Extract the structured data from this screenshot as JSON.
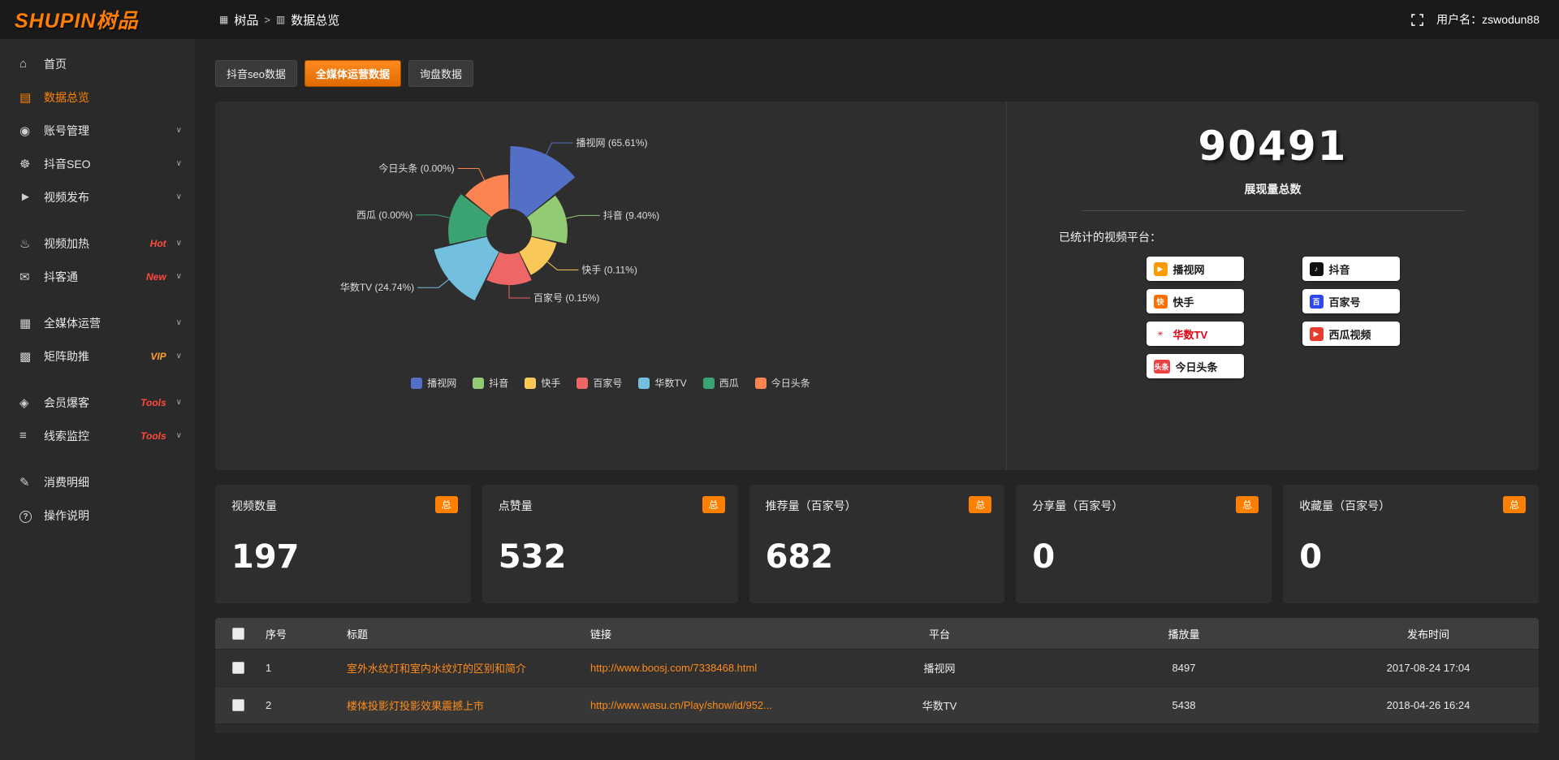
{
  "colors": {
    "accent": "#ff8000",
    "link": "#ff8c1a",
    "panel": "#2e2e2e"
  },
  "header": {
    "logo_text": "SHUPIN树品",
    "breadcrumb": {
      "root": "树品",
      "separator": ">",
      "current": "数据总览"
    },
    "username": "用户名：zswodun88"
  },
  "sidebar": {
    "items": [
      {
        "label": "首页",
        "icon": "home"
      },
      {
        "label": "数据总览",
        "icon": "bar-chart",
        "active": true
      },
      {
        "label": "账号管理",
        "icon": "user",
        "expandable": true
      },
      {
        "label": "抖音SEO",
        "icon": "gear",
        "expandable": true
      },
      {
        "label": "视频发布",
        "icon": "video-upload",
        "expandable": true
      },
      {
        "label": "视频加热",
        "icon": "fire",
        "tag": "Hot",
        "tag_color": "#ff4a3d",
        "expandable": true
      },
      {
        "label": "抖客通",
        "icon": "message",
        "tag": "New",
        "tag_color": "#ff4a3d",
        "expandable": true
      },
      {
        "label": "全媒体运营",
        "icon": "monitor",
        "expandable": true
      },
      {
        "label": "矩阵助推",
        "icon": "grid",
        "tag": "VIP",
        "tag_color": "#ffa02e",
        "expandable": true
      },
      {
        "label": "会员爆客",
        "icon": "member",
        "tag": "Tools",
        "tag_color": "#ff4a3d",
        "expandable": true
      },
      {
        "label": "线索监控",
        "icon": "filter",
        "tag": "Tools",
        "tag_color": "#ff4a3d",
        "expandable": true
      },
      {
        "label": "消费明细",
        "icon": "receipt"
      },
      {
        "label": "操作说明",
        "icon": "help"
      }
    ]
  },
  "tabs": [
    {
      "label": "抖音seo数据"
    },
    {
      "label": "全媒体运营数据",
      "active": true
    },
    {
      "label": "询盘数据"
    }
  ],
  "chart_data": {
    "type": "pie",
    "variant": "nightingale-rose-donut",
    "title": "",
    "legend_position": "bottom",
    "inner_radius": 28,
    "slices": [
      {
        "name": "播视网",
        "percent": 65.61,
        "color": "#5470c6",
        "radius": 105
      },
      {
        "name": "抖音",
        "percent": 9.4,
        "color": "#91cc75",
        "radius": 72
      },
      {
        "name": "快手",
        "percent": 0.11,
        "color": "#fac858",
        "radius": 60
      },
      {
        "name": "百家号",
        "percent": 0.15,
        "color": "#ee6666",
        "radius": 66
      },
      {
        "name": "华数TV",
        "percent": 24.74,
        "color": "#73c0de",
        "radius": 95
      },
      {
        "name": "西瓜",
        "percent": 0,
        "color": "#3ba272",
        "radius": 75
      },
      {
        "name": "今日头条",
        "percent": 0,
        "color": "#fc8452",
        "radius": 70
      }
    ]
  },
  "summary": {
    "total_value": "90491",
    "total_label": "展现量总数",
    "platforms_label": "已统计的视频平台：",
    "platforms": [
      {
        "name": "播视网",
        "icon_label": "▶",
        "icon_bg": "#ff9a00",
        "icon_fg": "#ffffff",
        "text_color": "#1a1a1a"
      },
      {
        "name": "抖音",
        "icon_label": "♪",
        "icon_bg": "#111111",
        "icon_fg": "#ffffff",
        "text_color": "#1a1a1a"
      },
      {
        "name": "快手",
        "icon_label": "快",
        "icon_bg": "#ff6f00",
        "icon_fg": "#ffffff",
        "text_color": "#1a1a1a"
      },
      {
        "name": "百家号",
        "icon_label": "百",
        "icon_bg": "#2d47f2",
        "icon_fg": "#ffffff",
        "text_color": "#1a1a1a"
      },
      {
        "name": "华数TV",
        "icon_label": "✳",
        "icon_bg": "#ffffff",
        "icon_fg": "#e60012",
        "text_color": "#e60012"
      },
      {
        "name": "西瓜视频",
        "icon_label": "▶",
        "icon_bg": "#e83c2f",
        "icon_fg": "#ffffff",
        "text_color": "#1a1a1a"
      },
      {
        "name": "今日头条",
        "icon_label": "头条",
        "icon_bg": "#f04142",
        "icon_fg": "#ffffff",
        "text_color": "#1a1a1a"
      }
    ]
  },
  "stat_cards": [
    {
      "label": "视频数量",
      "badge": "总",
      "value": "197"
    },
    {
      "label": "点赞量",
      "badge": "总",
      "value": "532"
    },
    {
      "label": "推荐量（百家号）",
      "badge": "总",
      "value": "682"
    },
    {
      "label": "分享量（百家号）",
      "badge": "总",
      "value": "0"
    },
    {
      "label": "收藏量（百家号）",
      "badge": "总",
      "value": "0"
    }
  ],
  "table": {
    "columns": [
      "序号",
      "标题",
      "链接",
      "平台",
      "播放量",
      "发布时间"
    ],
    "rows": [
      {
        "index": "1",
        "title": "室外水纹灯和室内水纹灯的区别和简介",
        "link": "http://www.boosj.com/7338468.html",
        "platform": "播视网",
        "plays": "8497",
        "time": "2017-08-24 17:04"
      },
      {
        "index": "2",
        "title": "楼体投影灯投影效果震撼上市",
        "link": "http://www.wasu.cn/Play/show/id/952...",
        "platform": "华数TV",
        "plays": "5438",
        "time": "2018-04-26 16:24"
      }
    ]
  }
}
